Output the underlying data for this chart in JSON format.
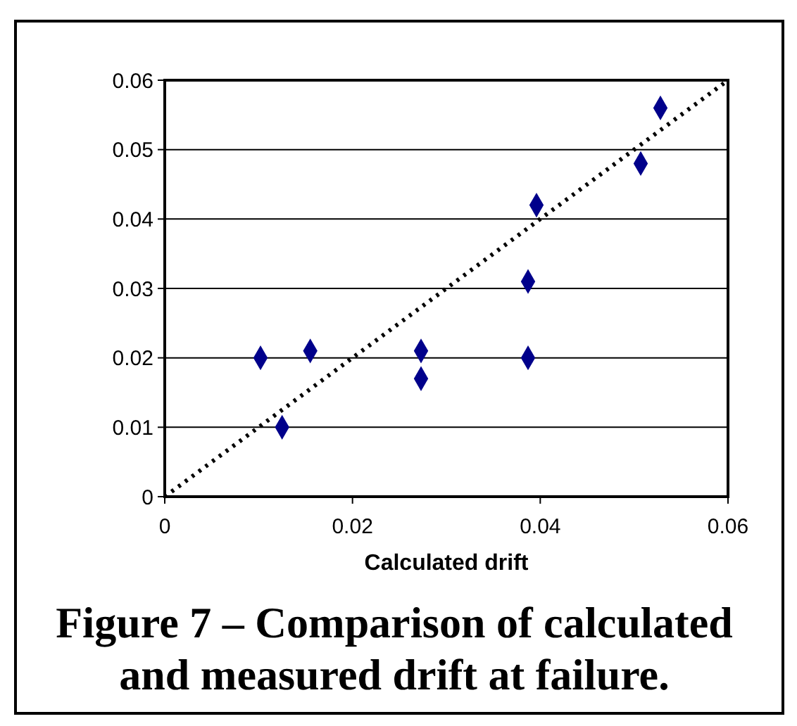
{
  "chart_data": {
    "type": "scatter",
    "xlabel": "Calculated drift",
    "annotations": [
      "Figure 7 – Comparison of calculated and measured drift at failure."
    ],
    "xlim": [
      0,
      0.06
    ],
    "ylim": [
      0,
      0.06
    ],
    "xticks": [
      0,
      0.02,
      0.04,
      0.06
    ],
    "yticks": [
      0,
      0.01,
      0.02,
      0.03,
      0.04,
      0.05,
      0.06
    ],
    "grid": "y",
    "series": [
      {
        "color": "#00008b",
        "marker": "diamond",
        "x": [
          0.0102,
          0.0125,
          0.0155,
          0.0273,
          0.0273,
          0.0387,
          0.0387,
          0.0396,
          0.0507,
          0.0528
        ],
        "values": [
          0.02,
          0.01,
          0.021,
          0.021,
          0.017,
          0.031,
          0.02,
          0.042,
          0.048,
          0.056
        ]
      },
      {
        "type": "line",
        "color": "#000000",
        "marker": "none",
        "line_style": "dotted",
        "x": [
          0,
          0.06
        ],
        "values": [
          0,
          0.06
        ]
      }
    ]
  }
}
